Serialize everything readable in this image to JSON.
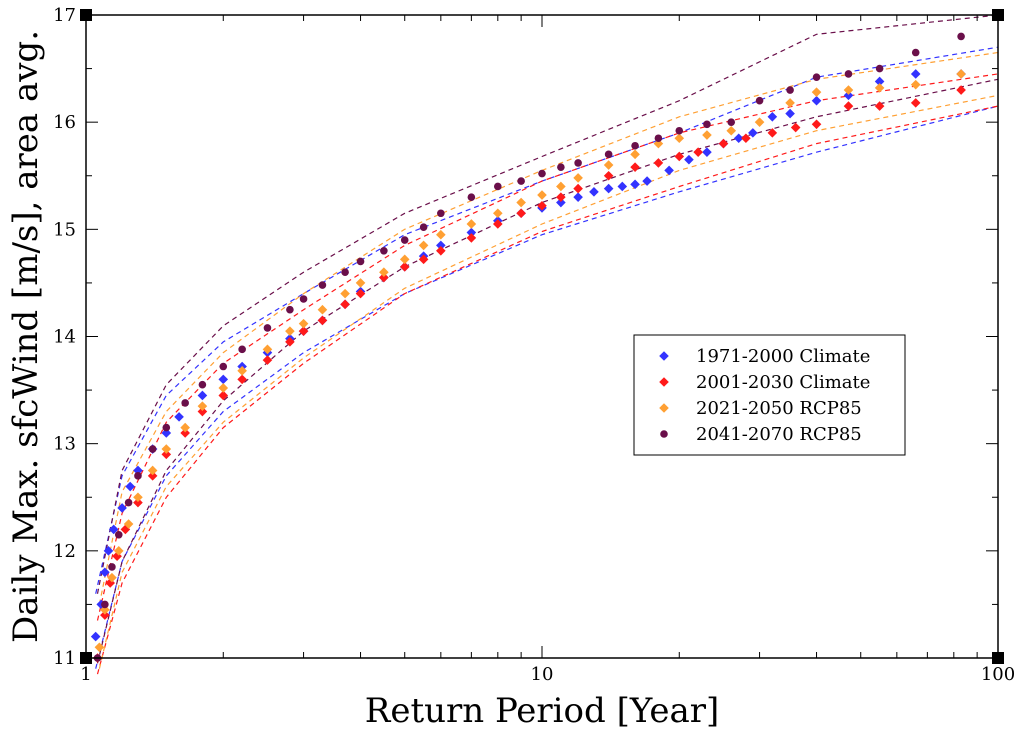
{
  "chart_data": {
    "type": "scatter",
    "title": "",
    "xlabel": "Return Period [Year]",
    "ylabel": "Daily Max. sfcWind [m/s], area avg.",
    "xscale": "log",
    "xlim": [
      1,
      100
    ],
    "ylim": [
      11,
      17
    ],
    "x_ticks": [
      1,
      10,
      100
    ],
    "y_ticks": [
      11,
      12,
      13,
      14,
      15,
      16,
      17
    ],
    "grid": false,
    "legend_position": "center-right",
    "series": [
      {
        "name": "1971-2000 Climate",
        "color": "#3333ff",
        "marker": "diamond",
        "points": [
          [
            1.05,
            11.2
          ],
          [
            1.08,
            11.5
          ],
          [
            1.1,
            11.8
          ],
          [
            1.12,
            12.0
          ],
          [
            1.15,
            12.2
          ],
          [
            1.2,
            12.4
          ],
          [
            1.25,
            12.6
          ],
          [
            1.3,
            12.75
          ],
          [
            1.4,
            12.95
          ],
          [
            1.5,
            13.1
          ],
          [
            1.6,
            13.25
          ],
          [
            1.8,
            13.45
          ],
          [
            2.0,
            13.6
          ],
          [
            2.2,
            13.72
          ],
          [
            2.5,
            13.85
          ],
          [
            2.8,
            13.98
          ],
          [
            3.0,
            14.05
          ],
          [
            3.3,
            14.15
          ],
          [
            3.7,
            14.3
          ],
          [
            4.0,
            14.42
          ],
          [
            4.5,
            14.55
          ],
          [
            5.0,
            14.65
          ],
          [
            5.5,
            14.75
          ],
          [
            6.0,
            14.85
          ],
          [
            7.0,
            14.97
          ],
          [
            8.0,
            15.08
          ],
          [
            9.0,
            15.15
          ],
          [
            10.0,
            15.2
          ],
          [
            11.0,
            15.25
          ],
          [
            12.0,
            15.3
          ],
          [
            13.0,
            15.35
          ],
          [
            14.0,
            15.38
          ],
          [
            15.0,
            15.4
          ],
          [
            16.0,
            15.42
          ],
          [
            17.0,
            15.45
          ],
          [
            19.0,
            15.55
          ],
          [
            21.0,
            15.65
          ],
          [
            23.0,
            15.72
          ],
          [
            25.0,
            15.8
          ],
          [
            27.0,
            15.85
          ],
          [
            29.0,
            15.9
          ],
          [
            32.0,
            16.05
          ],
          [
            35.0,
            16.08
          ],
          [
            40.0,
            16.2
          ],
          [
            47.0,
            16.25
          ],
          [
            55.0,
            16.38
          ],
          [
            66.0,
            16.45
          ],
          [
            83.0,
            16.45
          ]
        ]
      },
      {
        "name": "2001-2030 Climate",
        "color": "#ff1a1a",
        "marker": "diamond",
        "points": [
          [
            1.06,
            11.0
          ],
          [
            1.1,
            11.4
          ],
          [
            1.13,
            11.7
          ],
          [
            1.17,
            11.95
          ],
          [
            1.22,
            12.2
          ],
          [
            1.3,
            12.45
          ],
          [
            1.4,
            12.7
          ],
          [
            1.5,
            12.9
          ],
          [
            1.65,
            13.1
          ],
          [
            1.8,
            13.3
          ],
          [
            2.0,
            13.45
          ],
          [
            2.2,
            13.6
          ],
          [
            2.5,
            13.78
          ],
          [
            2.8,
            13.95
          ],
          [
            3.0,
            14.05
          ],
          [
            3.3,
            14.15
          ],
          [
            3.7,
            14.3
          ],
          [
            4.0,
            14.4
          ],
          [
            4.5,
            14.55
          ],
          [
            5.0,
            14.65
          ],
          [
            5.5,
            14.72
          ],
          [
            6.0,
            14.8
          ],
          [
            7.0,
            14.92
          ],
          [
            8.0,
            15.05
          ],
          [
            9.0,
            15.15
          ],
          [
            10.0,
            15.22
          ],
          [
            11.0,
            15.3
          ],
          [
            12.0,
            15.38
          ],
          [
            14.0,
            15.5
          ],
          [
            16.0,
            15.58
          ],
          [
            18.0,
            15.62
          ],
          [
            20.0,
            15.68
          ],
          [
            22.0,
            15.72
          ],
          [
            25.0,
            15.8
          ],
          [
            28.0,
            15.85
          ],
          [
            32.0,
            15.9
          ],
          [
            36.0,
            15.95
          ],
          [
            40.0,
            15.98
          ],
          [
            47.0,
            16.15
          ],
          [
            55.0,
            16.15
          ],
          [
            66.0,
            16.18
          ],
          [
            83.0,
            16.3
          ]
        ]
      },
      {
        "name": "2021-2050 RCP85",
        "color": "#ffa033",
        "marker": "diamond",
        "points": [
          [
            1.07,
            11.1
          ],
          [
            1.1,
            11.45
          ],
          [
            1.14,
            11.75
          ],
          [
            1.18,
            12.0
          ],
          [
            1.24,
            12.25
          ],
          [
            1.3,
            12.5
          ],
          [
            1.4,
            12.75
          ],
          [
            1.5,
            12.95
          ],
          [
            1.65,
            13.15
          ],
          [
            1.8,
            13.35
          ],
          [
            2.0,
            13.52
          ],
          [
            2.2,
            13.68
          ],
          [
            2.5,
            13.88
          ],
          [
            2.8,
            14.05
          ],
          [
            3.0,
            14.12
          ],
          [
            3.3,
            14.25
          ],
          [
            3.7,
            14.4
          ],
          [
            4.0,
            14.5
          ],
          [
            4.5,
            14.6
          ],
          [
            5.0,
            14.72
          ],
          [
            5.5,
            14.85
          ],
          [
            6.0,
            14.95
          ],
          [
            7.0,
            15.05
          ],
          [
            8.0,
            15.15
          ],
          [
            9.0,
            15.25
          ],
          [
            10.0,
            15.32
          ],
          [
            11.0,
            15.4
          ],
          [
            12.0,
            15.48
          ],
          [
            14.0,
            15.6
          ],
          [
            16.0,
            15.7
          ],
          [
            18.0,
            15.8
          ],
          [
            20.0,
            15.85
          ],
          [
            23.0,
            15.88
          ],
          [
            26.0,
            15.92
          ],
          [
            30.0,
            16.0
          ],
          [
            35.0,
            16.18
          ],
          [
            40.0,
            16.28
          ],
          [
            47.0,
            16.3
          ],
          [
            55.0,
            16.32
          ],
          [
            66.0,
            16.35
          ],
          [
            83.0,
            16.45
          ]
        ]
      },
      {
        "name": "2041-2070 RCP85",
        "color": "#6a0f4a",
        "marker": "circle",
        "points": [
          [
            1.06,
            11.0
          ],
          [
            1.1,
            11.5
          ],
          [
            1.14,
            11.85
          ],
          [
            1.18,
            12.15
          ],
          [
            1.24,
            12.45
          ],
          [
            1.3,
            12.7
          ],
          [
            1.4,
            12.95
          ],
          [
            1.5,
            13.15
          ],
          [
            1.65,
            13.38
          ],
          [
            1.8,
            13.55
          ],
          [
            2.0,
            13.72
          ],
          [
            2.2,
            13.88
          ],
          [
            2.5,
            14.08
          ],
          [
            2.8,
            14.25
          ],
          [
            3.0,
            14.35
          ],
          [
            3.3,
            14.48
          ],
          [
            3.7,
            14.6
          ],
          [
            4.0,
            14.7
          ],
          [
            4.5,
            14.8
          ],
          [
            5.0,
            14.9
          ],
          [
            5.5,
            15.02
          ],
          [
            6.0,
            15.15
          ],
          [
            7.0,
            15.3
          ],
          [
            8.0,
            15.4
          ],
          [
            9.0,
            15.45
          ],
          [
            10.0,
            15.52
          ],
          [
            11.0,
            15.58
          ],
          [
            12.0,
            15.62
          ],
          [
            14.0,
            15.7
          ],
          [
            16.0,
            15.78
          ],
          [
            18.0,
            15.85
          ],
          [
            20.0,
            15.92
          ],
          [
            23.0,
            15.98
          ],
          [
            26.0,
            16.0
          ],
          [
            30.0,
            16.2
          ],
          [
            35.0,
            16.3
          ],
          [
            40.0,
            16.42
          ],
          [
            47.0,
            16.45
          ],
          [
            55.0,
            16.5
          ],
          [
            66.0,
            16.65
          ],
          [
            83.0,
            16.8
          ]
        ]
      }
    ],
    "bands": [
      {
        "color": "#3333ff",
        "lower": [
          [
            1.05,
            10.9
          ],
          [
            1.2,
            11.9
          ],
          [
            1.5,
            12.7
          ],
          [
            2.0,
            13.3
          ],
          [
            3.0,
            13.85
          ],
          [
            5.0,
            14.4
          ],
          [
            10.0,
            14.95
          ],
          [
            20.0,
            15.35
          ],
          [
            40.0,
            15.72
          ],
          [
            100.0,
            16.15
          ]
        ],
        "upper": [
          [
            1.05,
            11.6
          ],
          [
            1.2,
            12.7
          ],
          [
            1.5,
            13.45
          ],
          [
            2.0,
            13.95
          ],
          [
            3.0,
            14.4
          ],
          [
            5.0,
            14.95
          ],
          [
            10.0,
            15.45
          ],
          [
            20.0,
            15.9
          ],
          [
            40.0,
            16.42
          ],
          [
            100.0,
            16.7
          ]
        ]
      },
      {
        "color": "#ff1a1a",
        "lower": [
          [
            1.06,
            10.85
          ],
          [
            1.2,
            11.7
          ],
          [
            1.5,
            12.5
          ],
          [
            2.0,
            13.15
          ],
          [
            3.0,
            13.75
          ],
          [
            5.0,
            14.4
          ],
          [
            10.0,
            14.98
          ],
          [
            20.0,
            15.4
          ],
          [
            40.0,
            15.8
          ],
          [
            100.0,
            16.15
          ]
        ],
        "upper": [
          [
            1.06,
            11.35
          ],
          [
            1.2,
            12.35
          ],
          [
            1.5,
            13.2
          ],
          [
            2.0,
            13.75
          ],
          [
            3.0,
            14.25
          ],
          [
            5.0,
            14.85
          ],
          [
            10.0,
            15.45
          ],
          [
            20.0,
            15.9
          ],
          [
            40.0,
            16.2
          ],
          [
            100.0,
            16.45
          ]
        ]
      },
      {
        "color": "#ffa033",
        "lower": [
          [
            1.07,
            10.9
          ],
          [
            1.2,
            11.8
          ],
          [
            1.5,
            12.6
          ],
          [
            2.0,
            13.2
          ],
          [
            3.0,
            13.8
          ],
          [
            5.0,
            14.45
          ],
          [
            10.0,
            15.05
          ],
          [
            20.0,
            15.55
          ],
          [
            40.0,
            15.92
          ],
          [
            100.0,
            16.25
          ]
        ],
        "upper": [
          [
            1.07,
            11.5
          ],
          [
            1.2,
            12.55
          ],
          [
            1.5,
            13.3
          ],
          [
            2.0,
            13.85
          ],
          [
            3.0,
            14.4
          ],
          [
            5.0,
            15.0
          ],
          [
            10.0,
            15.55
          ],
          [
            20.0,
            16.05
          ],
          [
            40.0,
            16.4
          ],
          [
            100.0,
            16.65
          ]
        ]
      },
      {
        "color": "#6a0f4a",
        "lower": [
          [
            1.06,
            10.95
          ],
          [
            1.2,
            11.9
          ],
          [
            1.5,
            12.75
          ],
          [
            2.0,
            13.4
          ],
          [
            3.0,
            14.05
          ],
          [
            5.0,
            14.65
          ],
          [
            10.0,
            15.25
          ],
          [
            20.0,
            15.7
          ],
          [
            40.0,
            16.05
          ],
          [
            100.0,
            16.4
          ]
        ],
        "upper": [
          [
            1.06,
            11.6
          ],
          [
            1.2,
            12.75
          ],
          [
            1.5,
            13.55
          ],
          [
            2.0,
            14.1
          ],
          [
            3.0,
            14.6
          ],
          [
            5.0,
            15.15
          ],
          [
            10.0,
            15.68
          ],
          [
            20.0,
            16.2
          ],
          [
            40.0,
            16.82
          ],
          [
            100.0,
            17.0
          ]
        ]
      }
    ]
  }
}
